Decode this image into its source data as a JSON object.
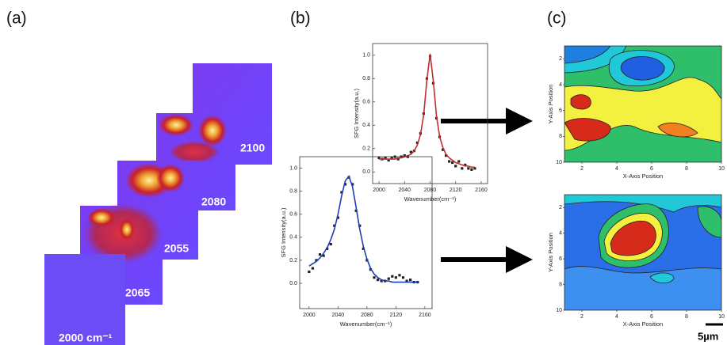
{
  "panel_labels": [
    "(a)",
    "(b)",
    "(c)"
  ],
  "images": {
    "labels": [
      "2100",
      "2080",
      "2055",
      "2065",
      "2000 cm⁻¹"
    ]
  },
  "chart_data": [
    {
      "type": "line",
      "x_label": "Wavenumber(cm⁻¹)",
      "y_label": "SFG Intensity(a.u.)",
      "x": [
        2000,
        2005,
        2010,
        2015,
        2020,
        2025,
        2030,
        2035,
        2040,
        2045,
        2050,
        2055,
        2060,
        2065,
        2070,
        2075,
        2080,
        2085,
        2090,
        2095,
        2100,
        2105,
        2110,
        2115,
        2120,
        2125,
        2130,
        2135,
        2140,
        2145,
        2150
      ],
      "series": [
        {
          "mode": "markers",
          "color": "#222222",
          "values": [
            0.12,
            0.11,
            0.12,
            0.1,
            0.12,
            0.13,
            0.11,
            0.13,
            0.14,
            0.13,
            0.17,
            0.18,
            0.25,
            0.33,
            0.5,
            0.8,
            0.99,
            0.76,
            0.46,
            0.3,
            0.19,
            0.14,
            0.09,
            0.08,
            0.05,
            0.09,
            0.03,
            0.06,
            0.03,
            0.02,
            0.03
          ]
        },
        {
          "mode": "line",
          "color": "#c0302a",
          "values": [
            0.11,
            0.11,
            0.11,
            0.11,
            0.11,
            0.11,
            0.12,
            0.12,
            0.13,
            0.14,
            0.15,
            0.18,
            0.23,
            0.32,
            0.49,
            0.79,
            1.01,
            0.78,
            0.48,
            0.3,
            0.21,
            0.15,
            0.12,
            0.1,
            0.08,
            0.07,
            0.06,
            0.05,
            0.05,
            0.04,
            0.04
          ]
        }
      ],
      "xlim": [
        1990,
        2170
      ],
      "ylim": [
        -0.1,
        1.1
      ],
      "xticks": [
        2000,
        2040,
        2080,
        2120,
        2160
      ],
      "yticks": [
        {
          "value": 0,
          "label": "0.0"
        },
        0.2,
        0.4,
        0.6,
        0.8,
        {
          "value": 1,
          "label": "1.0"
        }
      ]
    },
    {
      "type": "line",
      "x_label": "Wavenumber(cm⁻¹)",
      "y_label": "SFG Intensity(a.u.)",
      "x": [
        2000,
        2005,
        2010,
        2015,
        2020,
        2025,
        2030,
        2035,
        2040,
        2045,
        2050,
        2055,
        2060,
        2065,
        2070,
        2075,
        2080,
        2085,
        2090,
        2095,
        2100,
        2105,
        2110,
        2115,
        2120,
        2125,
        2130,
        2135,
        2140,
        2145,
        2150
      ],
      "series": [
        {
          "mode": "markers",
          "color": "#222222",
          "values": [
            0.1,
            0.13,
            0.2,
            0.25,
            0.24,
            0.3,
            0.34,
            0.5,
            0.57,
            0.79,
            0.86,
            0.92,
            0.86,
            0.63,
            0.5,
            0.3,
            0.2,
            0.12,
            0.05,
            0.03,
            0.02,
            0.02,
            0.04,
            0.06,
            0.05,
            0.07,
            0.05,
            0.02,
            0.03,
            0.01,
            0.01
          ]
        },
        {
          "mode": "line",
          "color": "#1f3fb0",
          "values": [
            0.15,
            0.17,
            0.19,
            0.22,
            0.26,
            0.31,
            0.38,
            0.47,
            0.6,
            0.76,
            0.89,
            0.93,
            0.84,
            0.66,
            0.47,
            0.32,
            0.21,
            0.13,
            0.08,
            0.05,
            0.03,
            0.02,
            0.02,
            0.01,
            0.01,
            0.01,
            0.01,
            0.01,
            0.01,
            0.01,
            0.01
          ]
        }
      ],
      "xlim": [
        1987,
        2170
      ],
      "ylim": [
        -0.22,
        1.1
      ],
      "xticks": [
        2000,
        2040,
        2080,
        2120,
        2160
      ],
      "yticks": [
        {
          "value": 0,
          "label": "0.0"
        },
        0.2,
        0.4,
        0.6,
        0.8,
        {
          "value": 1,
          "label": "1.0"
        }
      ]
    }
  ],
  "maps": [
    {
      "x_label": "X-Axis Position",
      "y_label": "Y-Axis Position",
      "xlim": [
        1,
        10
      ],
      "ylim": [
        1,
        10
      ],
      "xticks": [
        2,
        4,
        6,
        8,
        10
      ],
      "yticks": [
        2,
        4,
        6,
        8,
        10
      ]
    },
    {
      "x_label": "X-Axis Position",
      "y_label": "Y-Axis Position",
      "xlim": [
        1,
        10
      ],
      "ylim": [
        1,
        10
      ],
      "xticks": [
        2,
        4,
        6,
        8,
        10
      ],
      "yticks": [
        2,
        4,
        6,
        8,
        10
      ]
    }
  ],
  "scale_bar": "5µm"
}
